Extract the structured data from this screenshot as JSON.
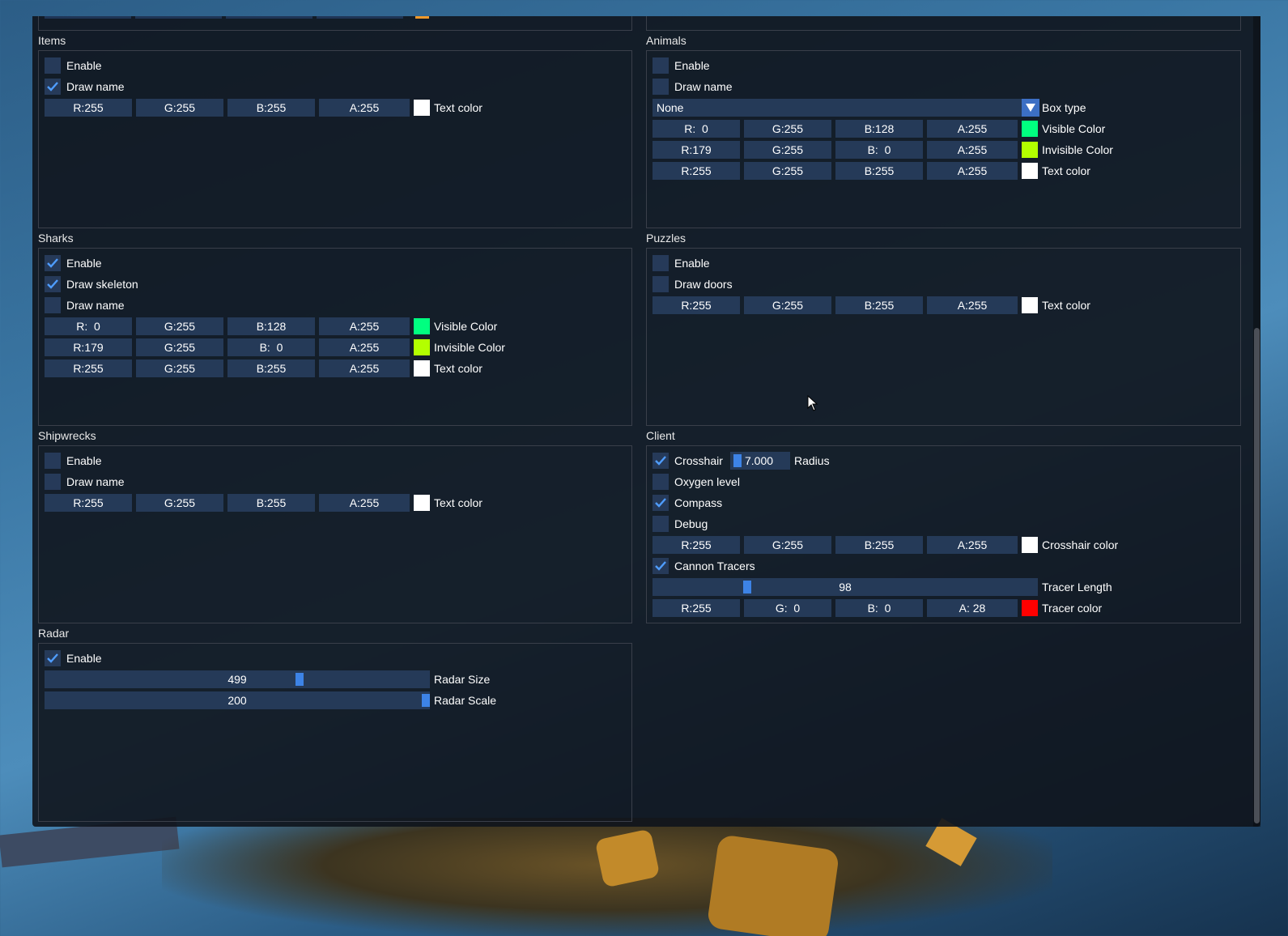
{
  "items": {
    "title": "Items",
    "enable": {
      "label": "Enable",
      "checked": false
    },
    "draw_name": {
      "label": "Draw name",
      "checked": true
    },
    "text_color": {
      "r": "R:255",
      "g": "G:255",
      "b": "B:255",
      "a": "A:255",
      "swatch": "#ffffff",
      "label": "Text color"
    }
  },
  "animals": {
    "title": "Animals",
    "enable": {
      "label": "Enable",
      "checked": false
    },
    "draw_name": {
      "label": "Draw name",
      "checked": false
    },
    "box_type": {
      "value": "None",
      "label": "Box type"
    },
    "visible_color": {
      "r": "R:  0",
      "g": "G:255",
      "b": "B:128",
      "a": "A:255",
      "swatch": "#00ff80",
      "label": "Visible Color"
    },
    "invisible_color": {
      "r": "R:179",
      "g": "G:255",
      "b": "B:  0",
      "a": "A:255",
      "swatch": "#b3ff00",
      "label": "Invisible Color"
    },
    "text_color": {
      "r": "R:255",
      "g": "G:255",
      "b": "B:255",
      "a": "A:255",
      "swatch": "#ffffff",
      "label": "Text color"
    }
  },
  "sharks": {
    "title": "Sharks",
    "enable": {
      "label": "Enable",
      "checked": true
    },
    "draw_skeleton": {
      "label": "Draw skeleton",
      "checked": true
    },
    "draw_name": {
      "label": "Draw name",
      "checked": false
    },
    "visible_color": {
      "r": "R:  0",
      "g": "G:255",
      "b": "B:128",
      "a": "A:255",
      "swatch": "#00ff80",
      "label": "Visible Color"
    },
    "invisible_color": {
      "r": "R:179",
      "g": "G:255",
      "b": "B:  0",
      "a": "A:255",
      "swatch": "#b3ff00",
      "label": "Invisible Color"
    },
    "text_color": {
      "r": "R:255",
      "g": "G:255",
      "b": "B:255",
      "a": "A:255",
      "swatch": "#ffffff",
      "label": "Text color"
    }
  },
  "puzzles": {
    "title": "Puzzles",
    "enable": {
      "label": "Enable",
      "checked": false
    },
    "draw_doors": {
      "label": "Draw doors",
      "checked": false
    },
    "text_color": {
      "r": "R:255",
      "g": "G:255",
      "b": "B:255",
      "a": "A:255",
      "swatch": "#ffffff",
      "label": "Text color"
    }
  },
  "shipwrecks": {
    "title": "Shipwrecks",
    "enable": {
      "label": "Enable",
      "checked": false
    },
    "draw_name": {
      "label": "Draw name",
      "checked": false
    },
    "text_color": {
      "r": "R:255",
      "g": "G:255",
      "b": "B:255",
      "a": "A:255",
      "swatch": "#ffffff",
      "label": "Text color"
    }
  },
  "client": {
    "title": "Client",
    "crosshair": {
      "label": "Crosshair",
      "checked": true,
      "radius_value": "7.000",
      "radius_label": "Radius"
    },
    "oxygen": {
      "label": "Oxygen level",
      "checked": false
    },
    "compass": {
      "label": "Compass",
      "checked": true
    },
    "debug": {
      "label": "Debug",
      "checked": false
    },
    "crosshair_color": {
      "r": "R:255",
      "g": "G:255",
      "b": "B:255",
      "a": "A:255",
      "swatch": "#ffffff",
      "label": "Crosshair color"
    },
    "cannon_tracers": {
      "label": "Cannon Tracers",
      "checked": true
    },
    "tracer_length": {
      "value": "98",
      "label": "Tracer Length",
      "fraction": 0.24
    },
    "tracer_color": {
      "r": "R:255",
      "g": "G:  0",
      "b": "B:  0",
      "a": "A: 28",
      "swatch": "#ff0000",
      "label": "Tracer color"
    }
  },
  "radar": {
    "title": "Radar",
    "enable": {
      "label": "Enable",
      "checked": true
    },
    "size": {
      "value": "499",
      "label": "Radar Size",
      "fraction": 0.665
    },
    "scale": {
      "value": "200",
      "label": "Radar Scale",
      "fraction": 1.0
    }
  }
}
